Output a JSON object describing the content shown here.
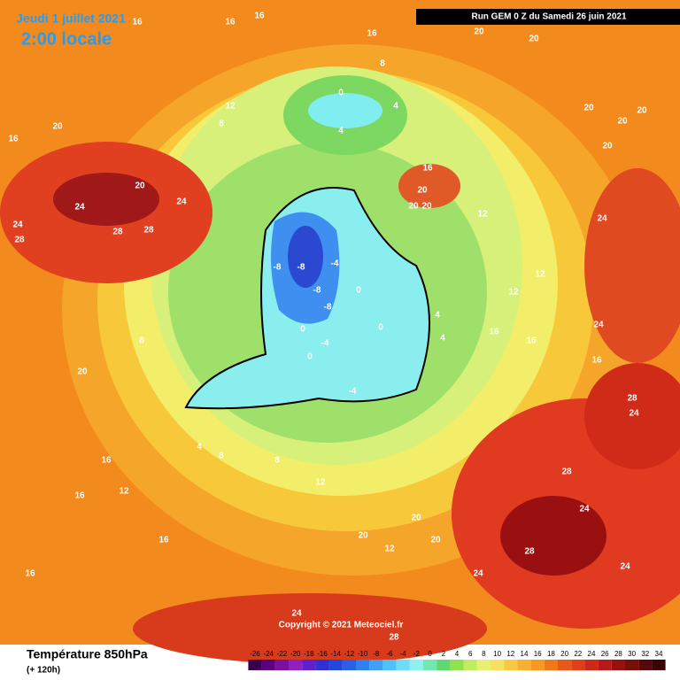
{
  "header": {
    "date": "Jeudi 1 juillet 2021",
    "time": "2:00 locale",
    "run": "Run GEM 0 Z du Samedi 26 juin 2021"
  },
  "footer": {
    "title": "Température 850hPa",
    "lead": "(+ 120h)",
    "copyright": "Copyright © 2021 Meteociel.fr"
  },
  "legend": {
    "labels": [
      -26,
      -24,
      -22,
      -20,
      -18,
      -16,
      -14,
      -12,
      -10,
      -8,
      -6,
      -4,
      -2,
      0,
      2,
      4,
      6,
      8,
      10,
      12,
      14,
      16,
      18,
      20,
      22,
      24,
      26,
      28,
      30,
      32,
      34
    ]
  },
  "map": {
    "labels": [
      16,
      20,
      24,
      24,
      28,
      28,
      28,
      24,
      20,
      0,
      4,
      4,
      8,
      12,
      8,
      -8,
      -8,
      -8,
      -8,
      -4,
      0,
      0,
      4,
      4,
      12,
      16,
      20,
      20,
      20,
      20,
      20,
      20,
      20,
      24,
      24,
      24,
      24,
      24,
      28,
      28,
      28,
      16,
      16,
      16,
      12,
      12,
      8,
      8,
      8,
      4,
      12,
      12,
      12,
      16,
      16,
      16,
      16,
      20,
      20,
      20,
      20,
      24,
      24,
      28,
      16,
      16,
      16,
      16,
      20,
      20,
      -4,
      -4,
      0,
      0
    ]
  }
}
